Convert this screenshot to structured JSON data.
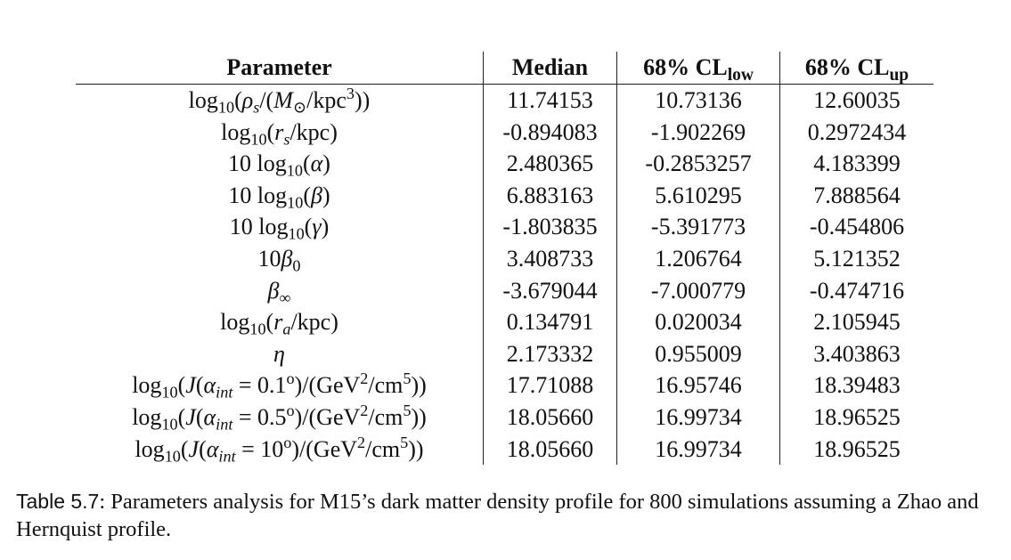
{
  "table": {
    "headers": {
      "parameter": "Parameter",
      "median": "Median",
      "cl_low_prefix": "68% CL",
      "cl_low_sub": "low",
      "cl_up_prefix": "68% CL",
      "cl_up_sub": "up"
    },
    "rows": [
      {
        "median": "11.74153",
        "cl_low": "10.73136",
        "cl_up": "12.60035"
      },
      {
        "median": "-0.894083",
        "cl_low": "-1.902269",
        "cl_up": "0.2972434"
      },
      {
        "median": "2.480365",
        "cl_low": "-0.2853257",
        "cl_up": "4.183399"
      },
      {
        "median": "6.883163",
        "cl_low": "5.610295",
        "cl_up": "7.888564"
      },
      {
        "median": "-1.803835",
        "cl_low": "-5.391773",
        "cl_up": "-0.454806"
      },
      {
        "median": "3.408733",
        "cl_low": "1.206764",
        "cl_up": "5.121352"
      },
      {
        "median": "-3.679044",
        "cl_low": "-7.000779",
        "cl_up": "-0.474716"
      },
      {
        "median": "0.134791",
        "cl_low": "0.020034",
        "cl_up": "2.105945"
      },
      {
        "median": "2.173332",
        "cl_low": "0.955009",
        "cl_up": "3.403863"
      },
      {
        "median": "17.71088",
        "cl_low": "16.95746",
        "cl_up": "18.39483"
      },
      {
        "median": "18.05660",
        "cl_low": "16.99734",
        "cl_up": "18.96525"
      },
      {
        "median": "18.05660",
        "cl_low": "16.99734",
        "cl_up": "18.96525"
      }
    ]
  },
  "caption": {
    "label": "Table 5.7",
    "text": ": Parameters analysis for M15’s dark matter density profile for 800 simulations assuming a Zhao and Hernquist profile."
  }
}
